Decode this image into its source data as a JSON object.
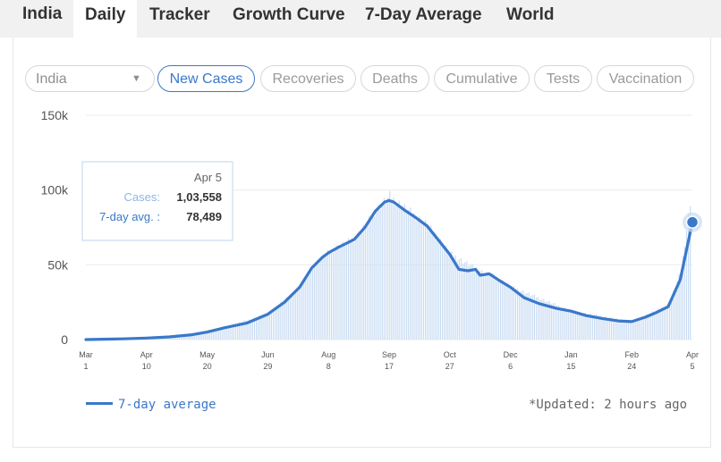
{
  "tabs": [
    "India",
    "Daily",
    "Tracker",
    "Growth Curve",
    "7-Day Average",
    "World"
  ],
  "region_select": {
    "value": "India"
  },
  "metric_pills": [
    "New Cases",
    "Recoveries",
    "Deaths",
    "Cumulative",
    "Tests",
    "Vaccination"
  ],
  "tooltip": {
    "date": "Apr 5",
    "cases_label": "Cases:",
    "cases_value": "1,03,558",
    "avg_label": "7-day avg. :",
    "avg_value": "78,489"
  },
  "legend_label": "7-day average",
  "updated_text": "*Updated: 2 hours ago",
  "colors": {
    "line": "#3a78c9",
    "bars": "#c9dcf3",
    "grid": "#ececec",
    "selected": "#3a78c9"
  },
  "chart_data": {
    "type": "area",
    "series": [
      {
        "name": "7-day average",
        "x": [
          "2020-03-01",
          "2020-03-25",
          "2020-04-10",
          "2020-04-25",
          "2020-05-10",
          "2020-05-20",
          "2020-06-01",
          "2020-06-15",
          "2020-06-29",
          "2020-07-10",
          "2020-07-20",
          "2020-07-28",
          "2020-08-04",
          "2020-08-08",
          "2020-08-15",
          "2020-08-25",
          "2020-09-01",
          "2020-09-08",
          "2020-09-14",
          "2020-09-17",
          "2020-09-20",
          "2020-09-28",
          "2020-10-04",
          "2020-10-12",
          "2020-10-20",
          "2020-10-27",
          "2020-11-02",
          "2020-11-08",
          "2020-11-13",
          "2020-11-16",
          "2020-11-22",
          "2020-11-28",
          "2020-12-06",
          "2020-12-15",
          "2020-12-25",
          "2021-01-05",
          "2021-01-15",
          "2021-01-25",
          "2021-02-05",
          "2021-02-15",
          "2021-02-24",
          "2021-03-05",
          "2021-03-12",
          "2021-03-20",
          "2021-03-28",
          "2021-04-05"
        ],
        "values": [
          0,
          500,
          1000,
          1800,
          3200,
          5000,
          8000,
          11000,
          17000,
          25000,
          35000,
          48000,
          55000,
          58000,
          62000,
          67000,
          75000,
          86000,
          92000,
          93000,
          92000,
          86000,
          82000,
          76000,
          66000,
          57000,
          47000,
          46000,
          47000,
          43000,
          44000,
          40000,
          35000,
          28000,
          24000,
          21000,
          19000,
          16000,
          14000,
          12500,
          12000,
          15000,
          18000,
          22000,
          40000,
          78489
        ]
      },
      {
        "name": "Daily cases",
        "x": [
          "2020-03-01",
          "2020-04-10",
          "2020-05-20",
          "2020-06-29",
          "2020-07-20",
          "2020-08-08",
          "2020-08-25",
          "2020-09-17",
          "2020-10-04",
          "2020-10-27",
          "2020-11-13",
          "2020-12-06",
          "2021-01-15",
          "2021-02-24",
          "2021-03-20",
          "2021-03-28",
          "2021-04-05"
        ],
        "values": [
          0,
          1000,
          5000,
          17000,
          35000,
          58000,
          67000,
          95000,
          82000,
          57000,
          47000,
          35000,
          19000,
          12000,
          23000,
          45000,
          103558
        ]
      }
    ],
    "ylim": [
      0,
      150000
    ],
    "yticks": [
      "0",
      "50k",
      "100k",
      "150k"
    ],
    "xtick_labels": [
      [
        "Mar",
        "1"
      ],
      [
        "Apr",
        "10"
      ],
      [
        "May",
        "20"
      ],
      [
        "Jun",
        "29"
      ],
      [
        "Aug",
        "8"
      ],
      [
        "Sep",
        "17"
      ],
      [
        "Oct",
        "27"
      ],
      [
        "Dec",
        "6"
      ],
      [
        "Jan",
        "15"
      ],
      [
        "Feb",
        "24"
      ],
      [
        "Apr",
        "5"
      ]
    ],
    "grid": "horizontal",
    "legend": "bottom-left"
  }
}
